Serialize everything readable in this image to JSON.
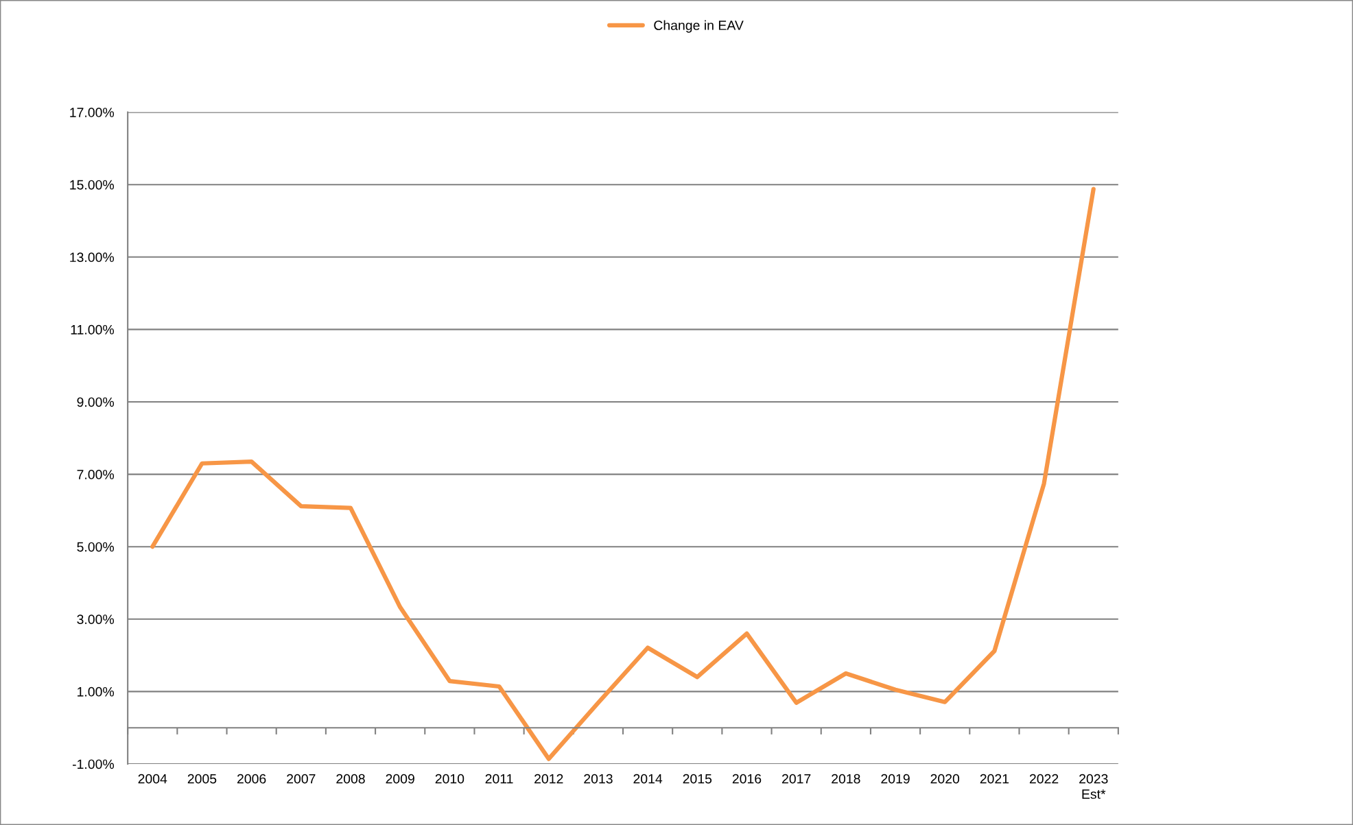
{
  "chart_data": {
    "type": "line",
    "categories": [
      "2004",
      "2005",
      "2006",
      "2007",
      "2008",
      "2009",
      "2010",
      "2011",
      "2012",
      "2013",
      "2014",
      "2015",
      "2016",
      "2017",
      "2018",
      "2019",
      "2020",
      "2021",
      "2022",
      "2023\nEst*"
    ],
    "series": [
      {
        "name": "Change in EAV",
        "color": "#f79646",
        "values": [
          5.0,
          7.3,
          7.35,
          6.12,
          6.07,
          3.33,
          1.29,
          1.14,
          -0.86,
          0.69,
          2.21,
          1.4,
          2.6,
          0.69,
          1.5,
          1.05,
          0.71,
          2.12,
          6.74,
          14.88
        ]
      }
    ],
    "ylim": [
      -1,
      17
    ],
    "yticks": [
      {
        "value": -1,
        "label": "-1.00%"
      },
      {
        "value": 1,
        "label": "1.00%"
      },
      {
        "value": 3,
        "label": "3.00%"
      },
      {
        "value": 5,
        "label": "5.00%"
      },
      {
        "value": 7,
        "label": "7.00%"
      },
      {
        "value": 9,
        "label": "9.00%"
      },
      {
        "value": 11,
        "label": "11.00%"
      },
      {
        "value": 13,
        "label": "13.00%"
      },
      {
        "value": 15,
        "label": "15.00%"
      },
      {
        "value": 17,
        "label": "17.00%"
      }
    ],
    "grid": "y",
    "legend": "top",
    "marker": "none",
    "line_style": "solid"
  }
}
